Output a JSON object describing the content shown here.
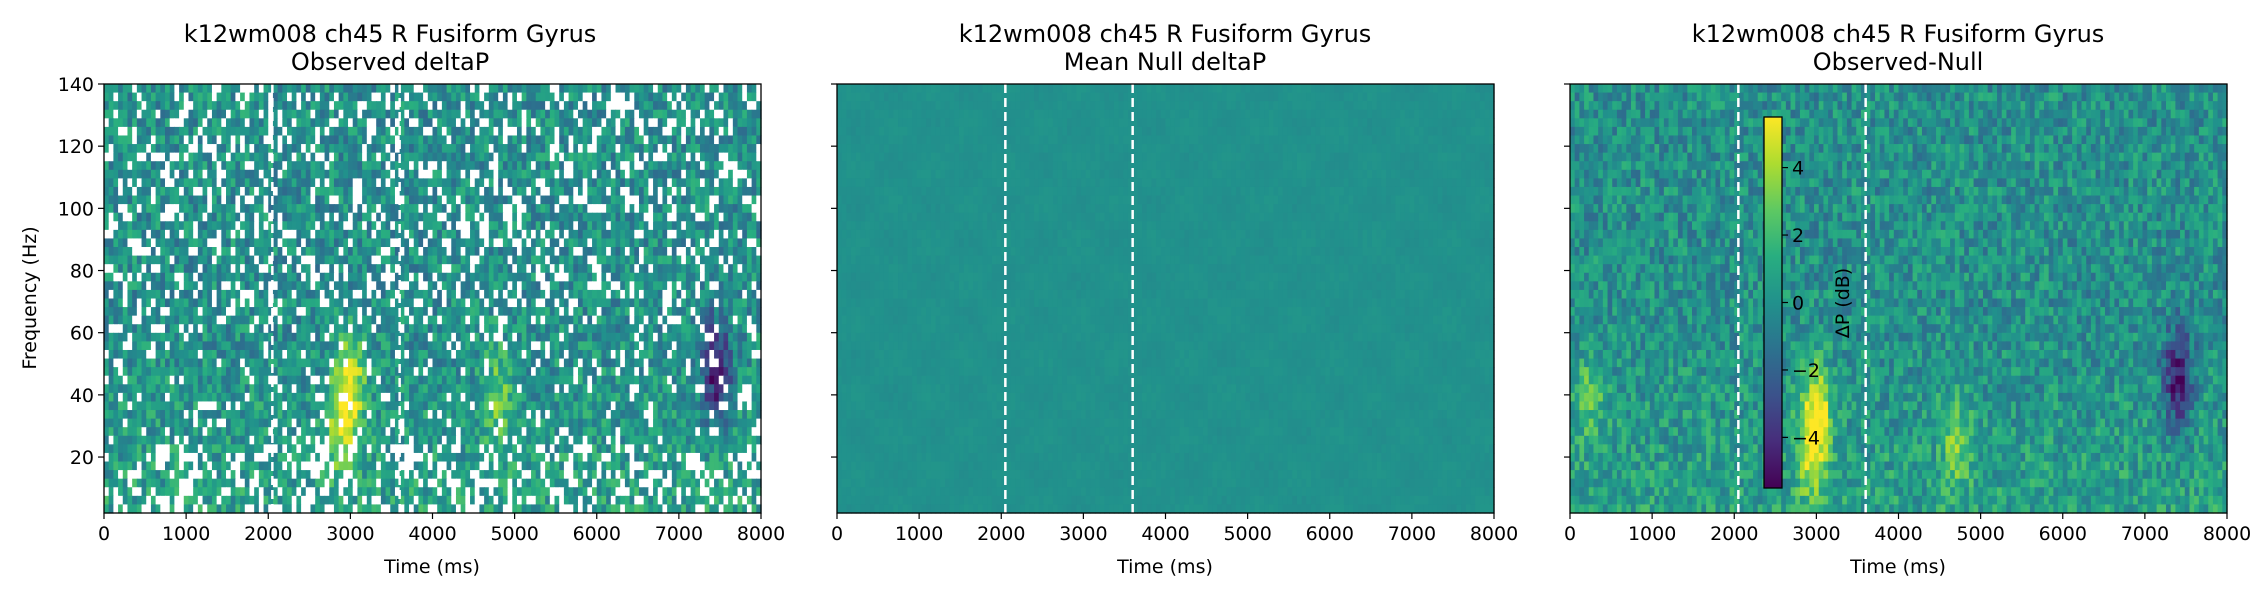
{
  "chart_data": [
    {
      "type": "heatmap",
      "title_line1": "k12wm008 ch45 R Fusiform Gyrus",
      "title_line2": "Observed deltaP",
      "xlabel": "Time (ms)",
      "ylabel": "Frequency (Hz)",
      "xlim": [
        0,
        8000
      ],
      "ylim": [
        2,
        140
      ],
      "xticks": [
        0,
        1000,
        2000,
        3000,
        4000,
        5000,
        6000,
        7000,
        8000
      ],
      "yticks": [
        20,
        40,
        60,
        80,
        100,
        120,
        140
      ],
      "show_ytick_labels": true,
      "vlines_ms": [
        2050,
        3600
      ],
      "colormap": "viridis",
      "masked_gaps": true,
      "hotspots": [
        {
          "t": 3000,
          "f": 45,
          "value": 4.5
        },
        {
          "t": 2900,
          "f": 30,
          "value": 3.5
        },
        {
          "t": 4800,
          "f": 40,
          "value": 2.5
        },
        {
          "t": 7450,
          "f": 48,
          "value": -5
        }
      ]
    },
    {
      "type": "heatmap",
      "title_line1": "k12wm008 ch45 R Fusiform Gyrus",
      "title_line2": "Mean Null deltaP",
      "xlabel": "Time (ms)",
      "ylabel": "",
      "xlim": [
        0,
        8000
      ],
      "ylim": [
        2,
        140
      ],
      "xticks": [
        0,
        1000,
        2000,
        3000,
        4000,
        5000,
        6000,
        7000,
        8000
      ],
      "yticks": [
        20,
        40,
        60,
        80,
        100,
        120,
        140
      ],
      "show_ytick_labels": false,
      "vlines_ms": [
        2050,
        3600
      ],
      "colormap": "viridis",
      "masked_gaps": false
    },
    {
      "type": "heatmap",
      "title_line1": "k12wm008 ch45 R Fusiform Gyrus",
      "title_line2": "Observed-Null",
      "xlabel": "Time (ms)",
      "ylabel": "",
      "xlim": [
        0,
        8000
      ],
      "ylim": [
        2,
        140
      ],
      "xticks": [
        0,
        1000,
        2000,
        3000,
        4000,
        5000,
        6000,
        7000,
        8000
      ],
      "yticks": [
        20,
        40,
        60,
        80,
        100,
        120,
        140
      ],
      "show_ytick_labels": false,
      "vlines_ms": [
        2050,
        3600
      ],
      "colormap": "viridis",
      "masked_gaps": false,
      "hotspots": [
        {
          "t": 3000,
          "f": 35,
          "value": 4.5
        },
        {
          "t": 2950,
          "f": 20,
          "value": 3.5
        },
        {
          "t": 4700,
          "f": 25,
          "value": 2.5
        },
        {
          "t": 7400,
          "f": 45,
          "value": -5
        },
        {
          "t": 250,
          "f": 40,
          "value": 2
        }
      ]
    }
  ],
  "colorbar": {
    "label": "ΔP (dB)",
    "range": [
      -5.5,
      5.5
    ],
    "ticks": [
      4,
      2,
      0,
      -2,
      -4
    ],
    "tick_labels": [
      "4",
      "2",
      "0",
      "−2",
      "−4"
    ],
    "colormap": "viridis"
  }
}
